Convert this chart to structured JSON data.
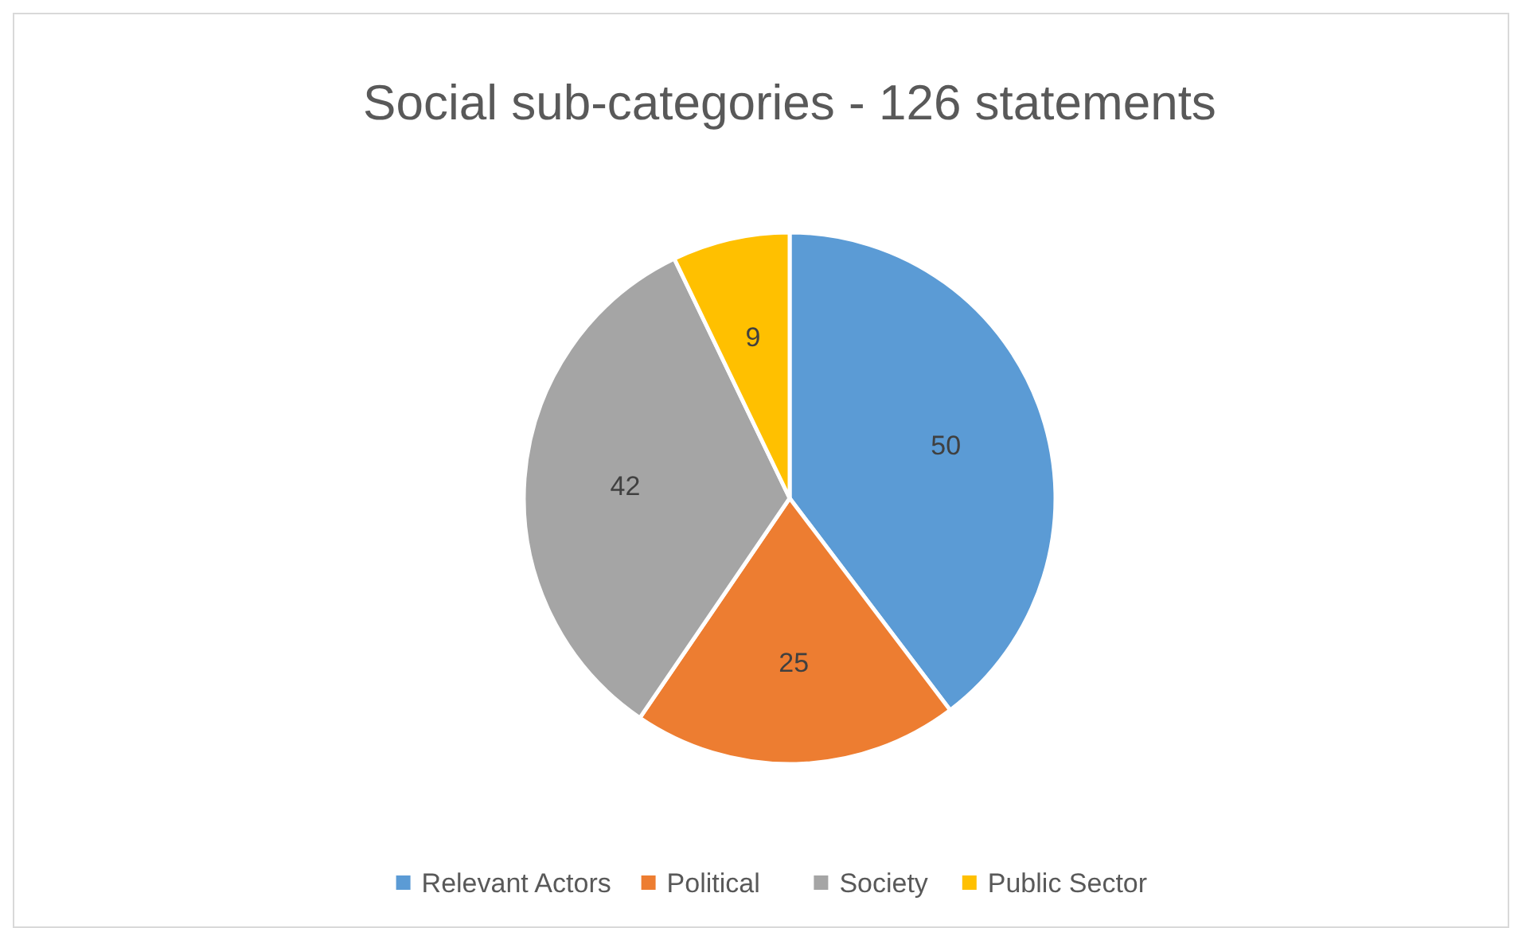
{
  "chart_data": {
    "type": "pie",
    "title": "Social sub-categories - 126 statements",
    "categories": [
      "Relevant Actors",
      "Political",
      "Society",
      "Public Sector"
    ],
    "values": [
      50,
      25,
      42,
      9
    ],
    "colors": [
      "#5b9bd5",
      "#ed7d31",
      "#a5a5a5",
      "#ffc000"
    ],
    "data_labels": true,
    "legend": "bottom"
  }
}
